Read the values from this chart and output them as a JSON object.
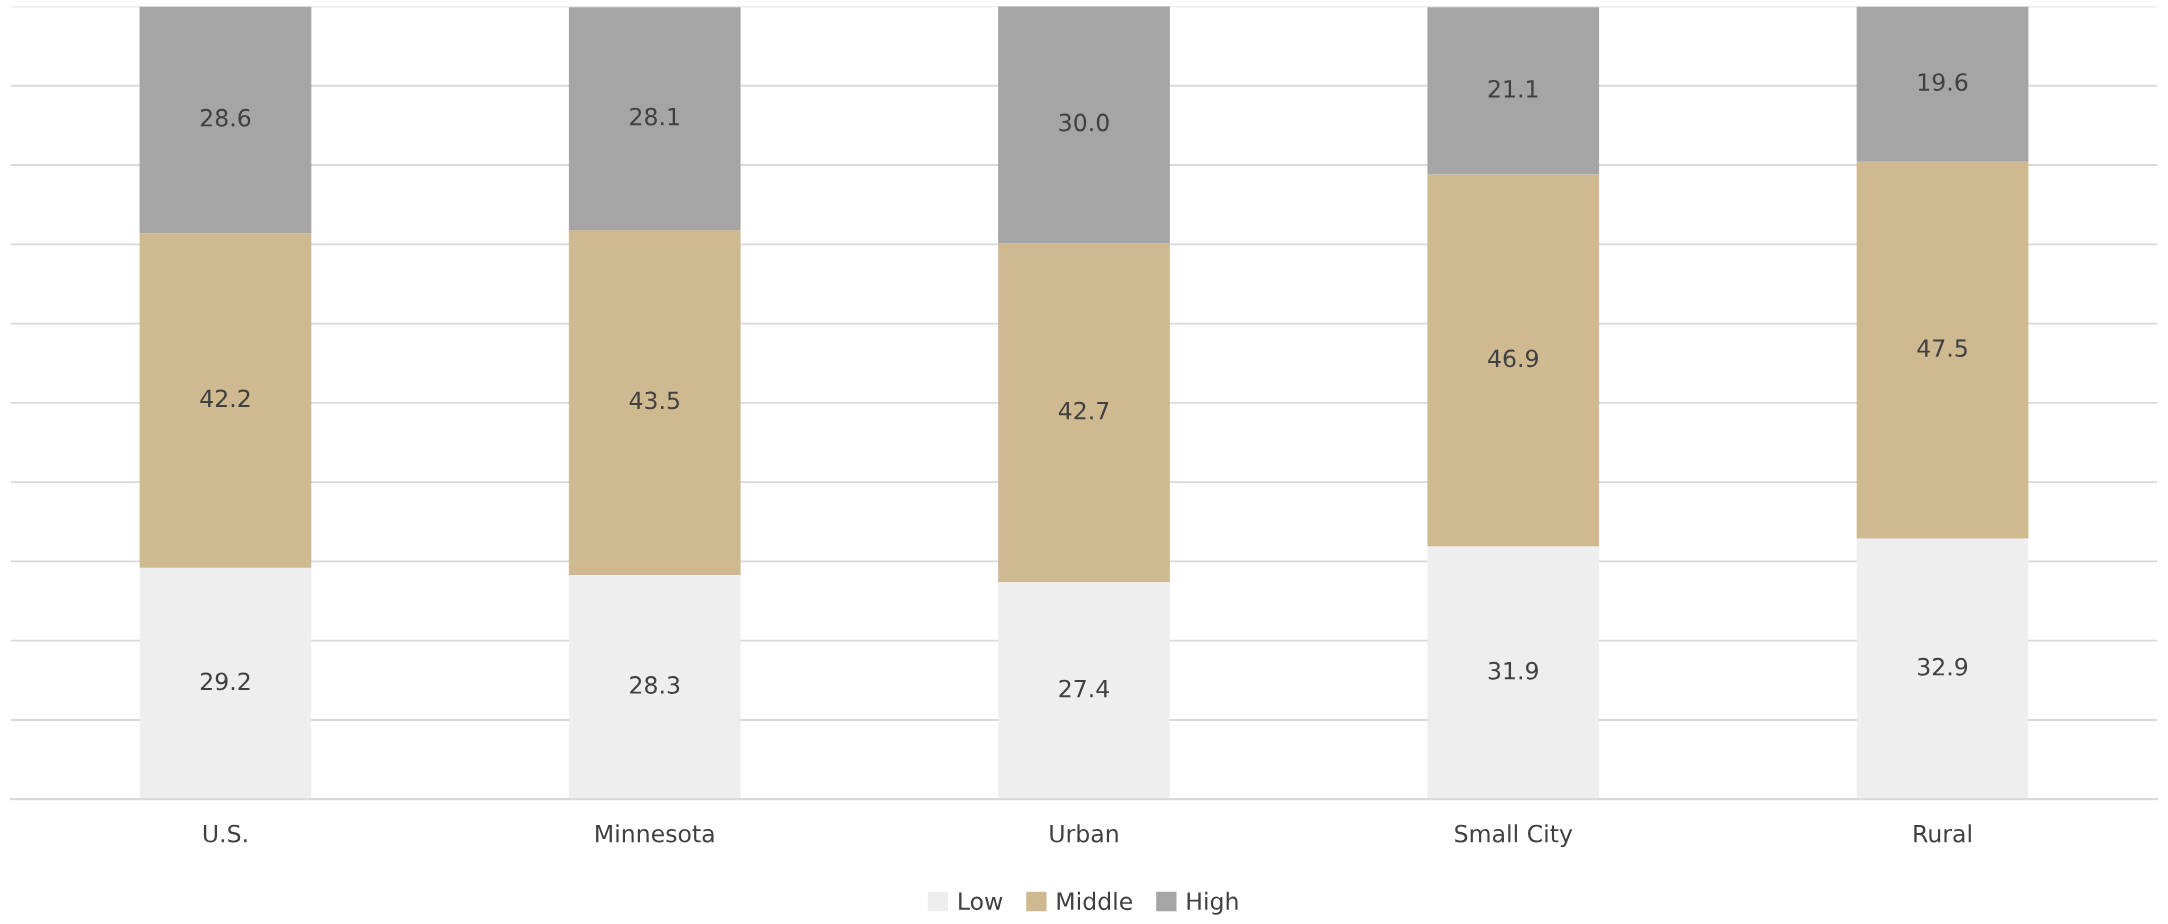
{
  "chart_data": {
    "type": "bar",
    "stacked": true,
    "categories": [
      "U.S.",
      "Minnesota",
      "Urban",
      "Small City",
      "Rural"
    ],
    "series": [
      {
        "name": "Low",
        "color": "#eeeeee",
        "values": [
          29.2,
          28.3,
          27.4,
          31.9,
          32.9
        ],
        "value_labels": [
          "29.2",
          "28.3",
          "27.4",
          "31.9",
          "32.9"
        ]
      },
      {
        "name": "Middle",
        "color": "#cfb991",
        "values": [
          42.2,
          43.5,
          42.7,
          46.9,
          47.5
        ],
        "value_labels": [
          "42.2",
          "43.5",
          "42.7",
          "46.9",
          "47.5"
        ]
      },
      {
        "name": "High",
        "color": "#a5a5a5",
        "values": [
          28.6,
          28.1,
          30.0,
          21.1,
          19.6
        ],
        "value_labels": [
          "28.6",
          "28.1",
          "30.0",
          "21.1",
          "19.6"
        ]
      }
    ],
    "ylim": [
      0,
      100
    ],
    "yticks": [
      {
        "value": 0,
        "label": null
      },
      {
        "value": 10,
        "label": null
      },
      {
        "value": 20,
        "label": null
      },
      {
        "value": 30,
        "label": null
      },
      {
        "value": 40,
        "label": null
      },
      {
        "value": 50,
        "label": null
      },
      {
        "value": 60,
        "label": null
      },
      {
        "value": 70,
        "label": null
      },
      {
        "value": 80,
        "label": null
      },
      {
        "value": 90,
        "label": null
      },
      {
        "value": 100,
        "label": null
      }
    ],
    "tick_labels": "x",
    "grid": "y",
    "legend": "bottom"
  }
}
